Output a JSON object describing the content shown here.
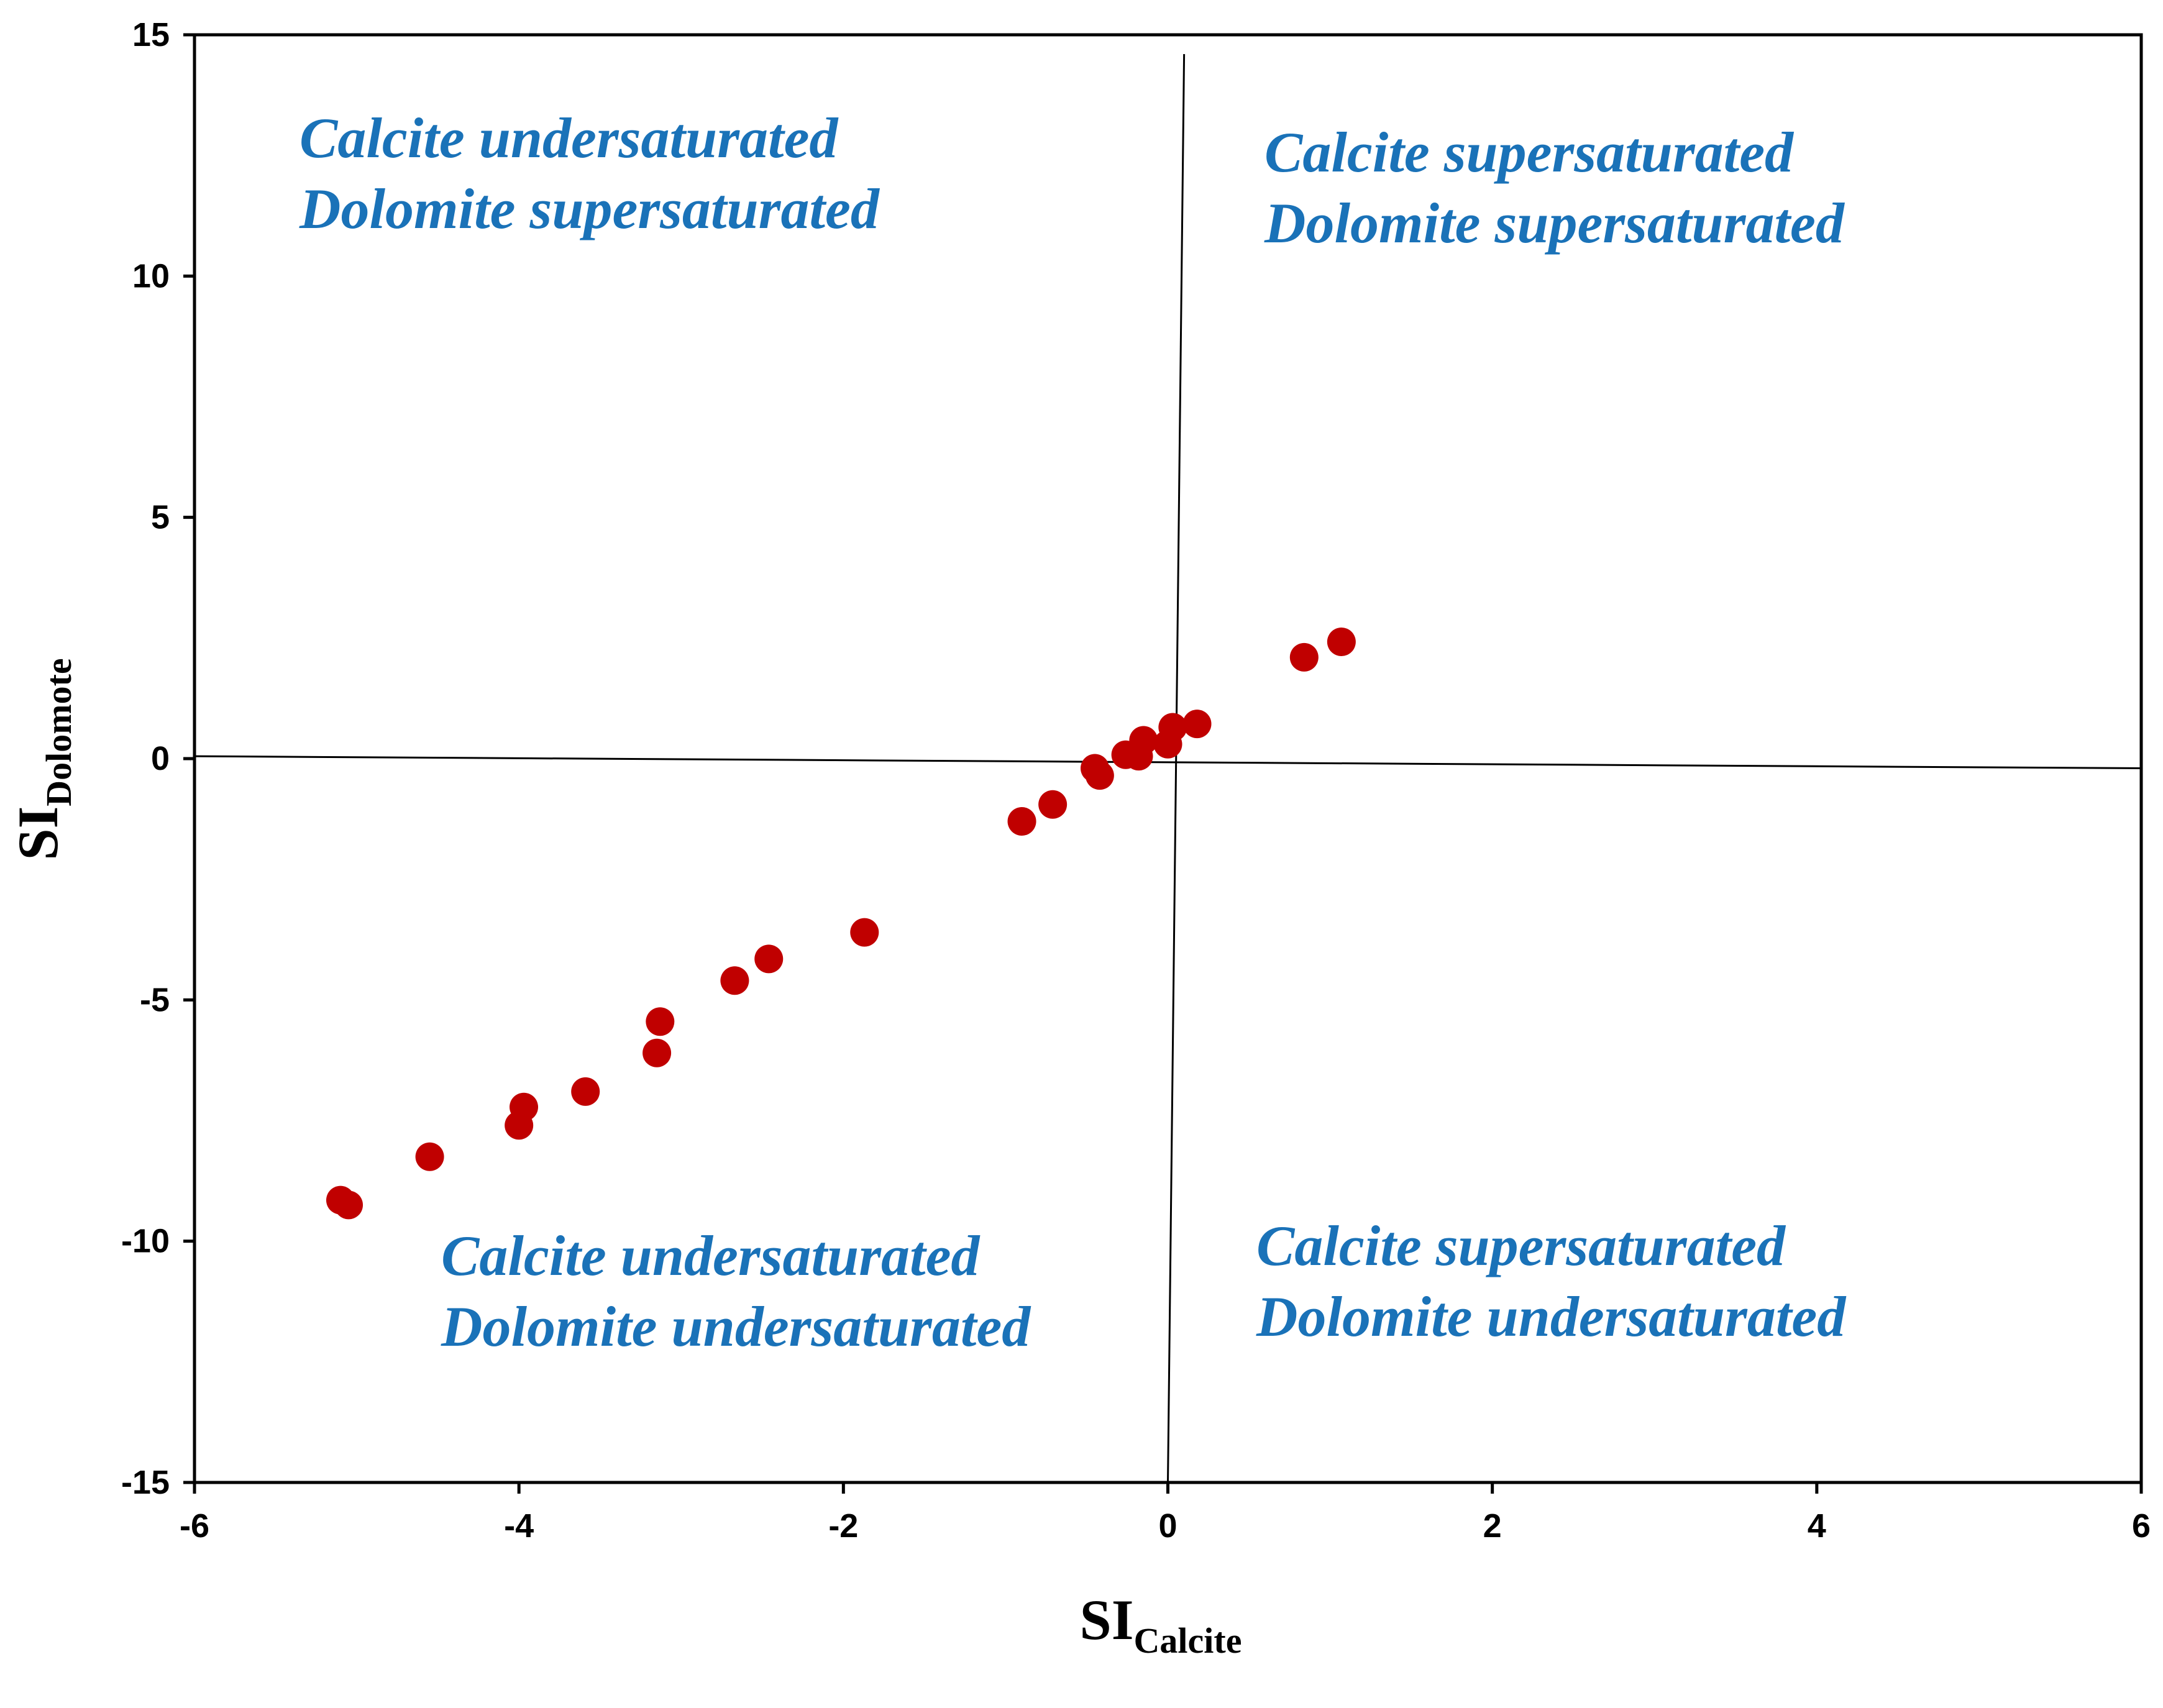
{
  "chart_data": {
    "type": "scatter",
    "title": "",
    "xlabel": {
      "main": "SI",
      "sub": "Calcite"
    },
    "ylabel": {
      "main": "SI",
      "sub": "Dolomote"
    },
    "xlim": [
      -6,
      6
    ],
    "ylim": [
      -15,
      15
    ],
    "xticks": [
      -6,
      -4,
      -2,
      0,
      2,
      4,
      6
    ],
    "yticks": [
      -15,
      -10,
      -5,
      0,
      5,
      10,
      15
    ],
    "grid": false,
    "legend": "none",
    "marker_color": "#c00000",
    "annotation_color": "#1a72b8",
    "reference_lines": [
      {
        "name": "horizontal-zero-line",
        "from": [
          -6,
          0.05
        ],
        "to": [
          6,
          -0.2
        ]
      },
      {
        "name": "vertical-zero-line",
        "from": [
          0.1,
          14.6
        ],
        "to": [
          0,
          -15
        ]
      }
    ],
    "annotations": [
      {
        "name": "quadrant-upper-left",
        "lines": [
          "Calcite undersaturated",
          "Dolomite supersaturated"
        ]
      },
      {
        "name": "quadrant-upper-right",
        "lines": [
          "Calcite supersaturated",
          "Dolomite supersaturated"
        ]
      },
      {
        "name": "quadrant-lower-left",
        "lines": [
          "Calcite undersaturated",
          "Dolomite undersaturated"
        ]
      },
      {
        "name": "quadrant-lower-right",
        "lines": [
          "Calcite supersaturated",
          "Dolomite undersaturated"
        ]
      }
    ],
    "series": [
      {
        "name": "samples",
        "points": [
          {
            "x": -5.1,
            "y": -9.15
          },
          {
            "x": -5.05,
            "y": -9.25
          },
          {
            "x": -4.55,
            "y": -8.25
          },
          {
            "x": -4.0,
            "y": -7.6
          },
          {
            "x": -3.97,
            "y": -7.22
          },
          {
            "x": -3.59,
            "y": -6.9
          },
          {
            "x": -3.15,
            "y": -6.1
          },
          {
            "x": -3.13,
            "y": -5.45
          },
          {
            "x": -2.67,
            "y": -4.6
          },
          {
            "x": -2.46,
            "y": -4.15
          },
          {
            "x": -1.87,
            "y": -3.6
          },
          {
            "x": -0.9,
            "y": -1.3
          },
          {
            "x": -0.71,
            "y": -0.95
          },
          {
            "x": -0.45,
            "y": -0.2
          },
          {
            "x": -0.42,
            "y": -0.35
          },
          {
            "x": -0.26,
            "y": 0.08
          },
          {
            "x": -0.18,
            "y": 0.05
          },
          {
            "x": -0.15,
            "y": 0.38
          },
          {
            "x": 0.0,
            "y": 0.3
          },
          {
            "x": 0.03,
            "y": 0.65
          },
          {
            "x": 0.18,
            "y": 0.72
          },
          {
            "x": 0.84,
            "y": 2.1
          },
          {
            "x": 1.07,
            "y": 2.42
          }
        ]
      }
    ]
  }
}
